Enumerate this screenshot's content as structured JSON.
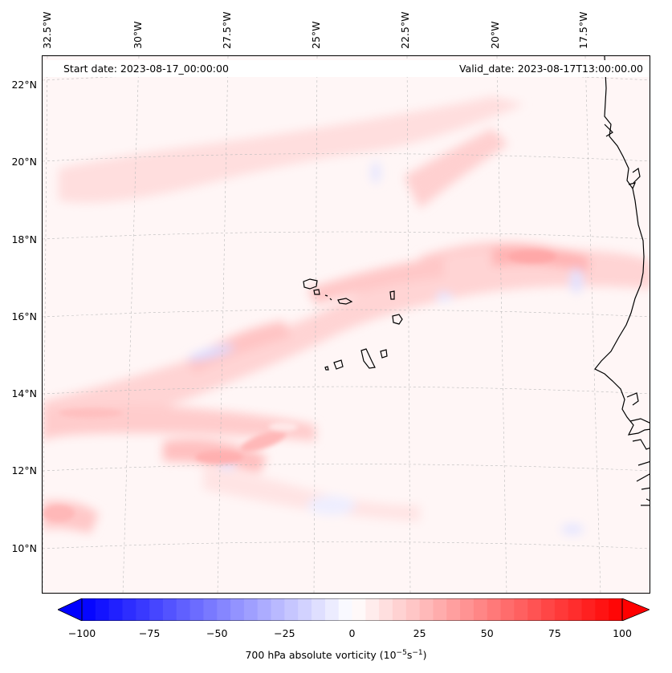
{
  "header": {
    "start_date": "Start date: 2023-08-17_00:00:00",
    "valid_date": "Valid_date: 2023-08-17T13:00:00.00"
  },
  "axes": {
    "lon_labels": [
      "32.5°W",
      "30°W",
      "27.5°W",
      "25°W",
      "22.5°W",
      "20°W",
      "17.5°W"
    ],
    "lat_labels": [
      "22°N",
      "20°N",
      "18°N",
      "16°N",
      "14°N",
      "12°N",
      "10°N"
    ]
  },
  "colorbar": {
    "ticks": [
      "−100",
      "−75",
      "−50",
      "−25",
      "0",
      "25",
      "50",
      "75",
      "100"
    ],
    "label": "700 hPa absolute vorticity (10",
    "label_exp1": "−5",
    "label_mid": "s",
    "label_exp2": "−1",
    "label_end": ")",
    "range": [
      -100,
      100
    ],
    "colormap": "bwr",
    "low_color": "#0000ff",
    "mid_color": "#ffffff",
    "high_color": "#ff0000"
  },
  "map": {
    "projection": "lambert-conformal",
    "gridlines": "dashed-gray",
    "coastline_color": "#000000",
    "features": [
      "cape-verde-islands",
      "west-african-coast"
    ]
  }
}
